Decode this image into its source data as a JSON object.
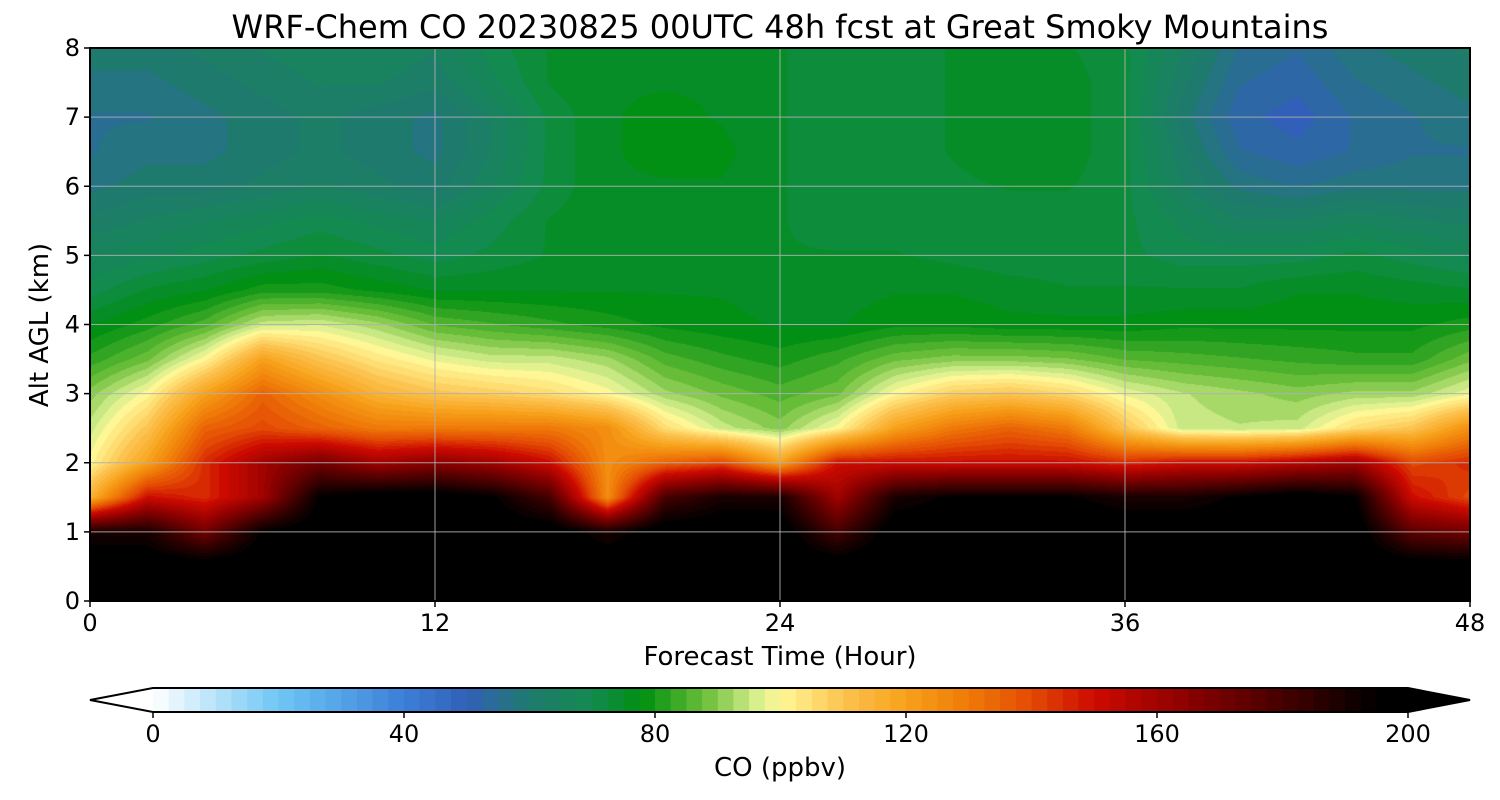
{
  "chart_data": {
    "type": "heatmap",
    "title": "WRF-Chem CO  20230825 00UTC 48h fcst at Great Smoky Mountains",
    "xlabel": "Forecast Time (Hour)",
    "ylabel": "Alt AGL (km)",
    "xlim": [
      0,
      48
    ],
    "ylim": [
      0,
      8
    ],
    "xticks": [
      "0",
      "12",
      "24",
      "36",
      "48"
    ],
    "yticks": [
      "0",
      "1",
      "2",
      "3",
      "4",
      "5",
      "6",
      "7",
      "8"
    ],
    "grid": true,
    "colorbar": {
      "label": "CO  (ppbv)",
      "range": [
        0,
        200
      ],
      "extend": "both",
      "ticks": [
        "0",
        "40",
        "80",
        "120",
        "160",
        "200"
      ],
      "stops": [
        {
          "v": 0,
          "color": "#ffffff"
        },
        {
          "v": 20,
          "color": "#6ec6f5"
        },
        {
          "v": 40,
          "color": "#3b7fd8"
        },
        {
          "v": 50,
          "color": "#3260b8"
        },
        {
          "v": 60,
          "color": "#1f7a6e"
        },
        {
          "v": 70,
          "color": "#138a50"
        },
        {
          "v": 78,
          "color": "#008f10"
        },
        {
          "v": 88,
          "color": "#6cbf3a"
        },
        {
          "v": 96,
          "color": "#d4ee8c"
        },
        {
          "v": 100,
          "color": "#fff796"
        },
        {
          "v": 110,
          "color": "#fcc350"
        },
        {
          "v": 120,
          "color": "#f7a11a"
        },
        {
          "v": 130,
          "color": "#ef7a08"
        },
        {
          "v": 140,
          "color": "#e34a04"
        },
        {
          "v": 150,
          "color": "#cc0a00"
        },
        {
          "v": 165,
          "color": "#8a0000"
        },
        {
          "v": 180,
          "color": "#450000"
        },
        {
          "v": 195,
          "color": "#000000"
        },
        {
          "v": 200,
          "color": "#000000"
        }
      ]
    },
    "x": [
      0,
      2,
      4,
      6,
      8,
      10,
      12,
      14,
      16,
      18,
      20,
      22,
      24,
      26,
      28,
      30,
      32,
      34,
      36,
      38,
      40,
      42,
      44,
      46,
      48
    ],
    "y": [
      0,
      0.5,
      1,
      1.5,
      2,
      2.5,
      3,
      3.5,
      4,
      4.5,
      5,
      5.5,
      6,
      6.5,
      7,
      7.5,
      8
    ],
    "z": [
      [
        200,
        200,
        200,
        200,
        200,
        200,
        200,
        200,
        200,
        200,
        200,
        200,
        200,
        200,
        200,
        200,
        200,
        200,
        200,
        200,
        200,
        200,
        200,
        200,
        200
      ],
      [
        200,
        200,
        200,
        200,
        200,
        200,
        200,
        200,
        200,
        200,
        200,
        200,
        200,
        200,
        200,
        200,
        200,
        200,
        200,
        200,
        200,
        200,
        200,
        200,
        200
      ],
      [
        190,
        190,
        170,
        195,
        200,
        200,
        200,
        200,
        200,
        190,
        200,
        200,
        200,
        180,
        200,
        200,
        200,
        200,
        200,
        200,
        200,
        200,
        200,
        175,
        170
      ],
      [
        115,
        150,
        145,
        160,
        195,
        200,
        200,
        195,
        180,
        125,
        180,
        190,
        190,
        160,
        190,
        195,
        195,
        195,
        190,
        190,
        195,
        200,
        195,
        150,
        140
      ],
      [
        100,
        120,
        145,
        160,
        170,
        160,
        165,
        160,
        150,
        125,
        135,
        140,
        120,
        150,
        150,
        150,
        150,
        150,
        145,
        150,
        150,
        155,
        160,
        140,
        145
      ],
      [
        95,
        110,
        135,
        140,
        135,
        130,
        130,
        130,
        130,
        125,
        105,
        95,
        90,
        100,
        120,
        130,
        135,
        130,
        110,
        95,
        94,
        95,
        105,
        110,
        125
      ],
      [
        90,
        100,
        120,
        135,
        125,
        115,
        110,
        108,
        105,
        100,
        92,
        88,
        85,
        88,
        100,
        108,
        110,
        106,
        98,
        94,
        92,
        90,
        92,
        92,
        98
      ],
      [
        82,
        88,
        100,
        120,
        110,
        103,
        98,
        95,
        95,
        92,
        85,
        82,
        80,
        83,
        88,
        90,
        90,
        89,
        86,
        85,
        84,
        83,
        82,
        82,
        88
      ],
      [
        76,
        80,
        85,
        95,
        96,
        92,
        86,
        84,
        82,
        80,
        78,
        77,
        76,
        76,
        78,
        78,
        77,
        77,
        77,
        78,
        78,
        78,
        78,
        78,
        80
      ],
      [
        70,
        74,
        76,
        80,
        80,
        78,
        76,
        76,
        76,
        76,
        76,
        76,
        75,
        75,
        76,
        76,
        75,
        74,
        74,
        74,
        74,
        76,
        76,
        75,
        74
      ],
      [
        66,
        68,
        70,
        72,
        74,
        72,
        70,
        72,
        74,
        76,
        76,
        76,
        74,
        74,
        74,
        73,
        72,
        72,
        72,
        70,
        70,
        70,
        72,
        70,
        68
      ],
      [
        62,
        64,
        66,
        68,
        70,
        68,
        66,
        70,
        74,
        76,
        76,
        76,
        74,
        72,
        72,
        72,
        72,
        72,
        72,
        68,
        64,
        64,
        66,
        64,
        63
      ],
      [
        58,
        60,
        60,
        62,
        64,
        62,
        60,
        66,
        72,
        76,
        76,
        76,
        74,
        72,
        72,
        73,
        74,
        74,
        72,
        64,
        58,
        56,
        58,
        58,
        58
      ],
      [
        56,
        58,
        58,
        60,
        62,
        60,
        58,
        64,
        72,
        76,
        77,
        77,
        74,
        72,
        72,
        74,
        76,
        75,
        72,
        62,
        54,
        52,
        54,
        56,
        56
      ],
      [
        56,
        56,
        58,
        60,
        62,
        60,
        58,
        64,
        72,
        76,
        77,
        76,
        74,
        72,
        72,
        74,
        76,
        75,
        72,
        60,
        52,
        50,
        54,
        56,
        58
      ],
      [
        58,
        58,
        60,
        62,
        64,
        64,
        62,
        68,
        74,
        76,
        76,
        76,
        74,
        72,
        72,
        74,
        75,
        75,
        72,
        62,
        54,
        52,
        56,
        58,
        60
      ],
      [
        60,
        60,
        62,
        64,
        66,
        66,
        64,
        70,
        74,
        76,
        76,
        76,
        74,
        72,
        72,
        74,
        75,
        74,
        72,
        64,
        56,
        54,
        58,
        60,
        62
      ]
    ]
  }
}
